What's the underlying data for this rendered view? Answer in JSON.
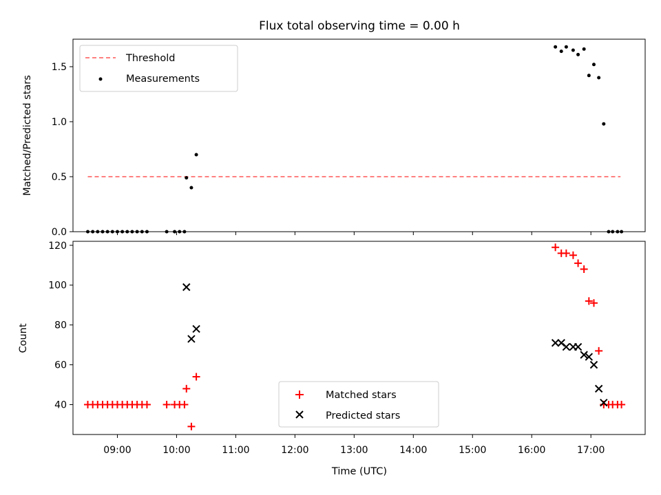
{
  "colors": {
    "threshold": "#ff7f7f",
    "measurements": "#000000",
    "matched": "#ff0000",
    "predicted": "#000000"
  },
  "chart_data": [
    {
      "type": "scatter",
      "title": "Flux total observing time = 0.00 h",
      "xlabel": "",
      "ylabel": "Matched/Predicted stars",
      "xlim": [
        "08:15",
        "17:55"
      ],
      "ylim": [
        0,
        1.75
      ],
      "yticks": [
        "0.0",
        "0.5",
        "1.0",
        "1.5"
      ],
      "grid": false,
      "legend": "top-left",
      "threshold": {
        "name": "Threshold",
        "y": 0.5,
        "x_start": "08:30",
        "x_end": "17:30"
      },
      "series": [
        {
          "name": "Measurements",
          "marker": "dot",
          "points": [
            [
              "08:30",
              0
            ],
            [
              "08:35",
              0
            ],
            [
              "08:40",
              0
            ],
            [
              "08:45",
              0
            ],
            [
              "08:50",
              0
            ],
            [
              "08:55",
              0
            ],
            [
              "09:00",
              0
            ],
            [
              "09:05",
              0
            ],
            [
              "09:10",
              0
            ],
            [
              "09:15",
              0
            ],
            [
              "09:20",
              0
            ],
            [
              "09:25",
              0
            ],
            [
              "09:30",
              0
            ],
            [
              "09:50",
              0
            ],
            [
              "09:58",
              0
            ],
            [
              "10:03",
              0
            ],
            [
              "10:08",
              0
            ],
            [
              "10:10",
              0.49
            ],
            [
              "10:15",
              0.4
            ],
            [
              "10:20",
              0.7
            ],
            [
              "16:24",
              1.68
            ],
            [
              "16:30",
              1.64
            ],
            [
              "16:35",
              1.68
            ],
            [
              "16:42",
              1.65
            ],
            [
              "16:47",
              1.61
            ],
            [
              "16:53",
              1.66
            ],
            [
              "16:58",
              1.42
            ],
            [
              "17:03",
              1.52
            ],
            [
              "17:08",
              1.4
            ],
            [
              "17:13",
              0.98
            ],
            [
              "17:18",
              0
            ],
            [
              "17:22",
              0
            ],
            [
              "17:27",
              0
            ],
            [
              "17:31",
              0
            ]
          ]
        }
      ]
    },
    {
      "type": "scatter",
      "title": "",
      "xlabel": "Time (UTC)",
      "ylabel": "Count",
      "xlim": [
        "08:15",
        "17:55"
      ],
      "ylim": [
        25,
        122
      ],
      "yticks": [
        "40",
        "60",
        "80",
        "100",
        "120"
      ],
      "xticks": [
        "09:00",
        "10:00",
        "11:00",
        "12:00",
        "13:00",
        "14:00",
        "15:00",
        "16:00",
        "17:00"
      ],
      "grid": false,
      "legend": "lower-center",
      "series": [
        {
          "name": "Matched stars",
          "marker": "plus",
          "points": [
            [
              "08:30",
              40
            ],
            [
              "08:35",
              40
            ],
            [
              "08:40",
              40
            ],
            [
              "08:45",
              40
            ],
            [
              "08:50",
              40
            ],
            [
              "08:55",
              40
            ],
            [
              "09:00",
              40
            ],
            [
              "09:05",
              40
            ],
            [
              "09:10",
              40
            ],
            [
              "09:15",
              40
            ],
            [
              "09:20",
              40
            ],
            [
              "09:25",
              40
            ],
            [
              "09:30",
              40
            ],
            [
              "09:50",
              40
            ],
            [
              "09:58",
              40
            ],
            [
              "10:03",
              40
            ],
            [
              "10:08",
              40
            ],
            [
              "10:10",
              48
            ],
            [
              "10:15",
              29
            ],
            [
              "10:20",
              54
            ],
            [
              "16:24",
              119
            ],
            [
              "16:30",
              116
            ],
            [
              "16:35",
              116
            ],
            [
              "16:42",
              115
            ],
            [
              "16:47",
              111
            ],
            [
              "16:53",
              108
            ],
            [
              "16:58",
              92
            ],
            [
              "17:03",
              91
            ],
            [
              "17:08",
              67
            ],
            [
              "17:13",
              40
            ],
            [
              "17:18",
              40
            ],
            [
              "17:22",
              40
            ],
            [
              "17:27",
              40
            ],
            [
              "17:31",
              40
            ]
          ]
        },
        {
          "name": "Predicted stars",
          "marker": "x",
          "points": [
            [
              "10:10",
              99
            ],
            [
              "10:15",
              73
            ],
            [
              "10:20",
              78
            ],
            [
              "16:24",
              71
            ],
            [
              "16:30",
              71
            ],
            [
              "16:35",
              69
            ],
            [
              "16:42",
              69
            ],
            [
              "16:47",
              69
            ],
            [
              "16:53",
              65
            ],
            [
              "16:58",
              64
            ],
            [
              "17:03",
              60
            ],
            [
              "17:08",
              48
            ],
            [
              "17:13",
              41
            ]
          ]
        }
      ]
    }
  ]
}
